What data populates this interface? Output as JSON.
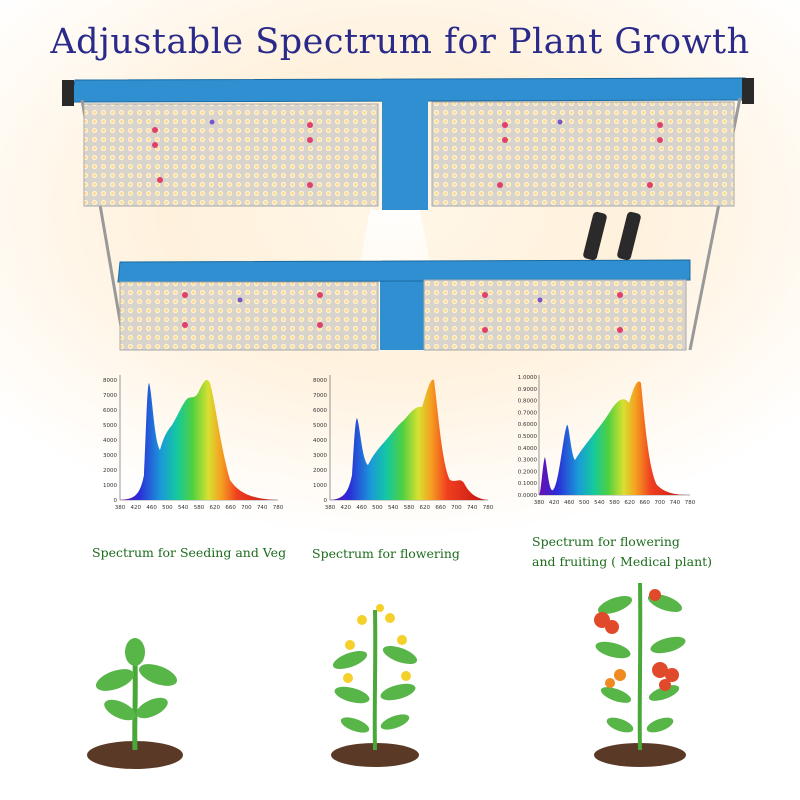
{
  "title": "Adjustable Spectrum for Plant Growth",
  "charts": [
    {
      "name": "seeding-veg",
      "caption": [
        "Spectrum for Seeding and Veg"
      ],
      "y_ticks": [
        "0",
        "1000",
        "2000",
        "3000",
        "4000",
        "5000",
        "6000",
        "7000",
        "8000"
      ],
      "x_ticks": [
        "380",
        "420",
        "460",
        "500",
        "540",
        "580",
        "620",
        "660",
        "700",
        "740",
        "780"
      ]
    },
    {
      "name": "flowering",
      "caption": [
        "Spectrum for flowering"
      ],
      "y_ticks": [
        "0",
        "1000",
        "2000",
        "3000",
        "4000",
        "5000",
        "6000",
        "7000",
        "8000"
      ],
      "x_ticks": [
        "380",
        "420",
        "460",
        "500",
        "540",
        "580",
        "620",
        "660",
        "700",
        "740",
        "780"
      ]
    },
    {
      "name": "fruiting",
      "caption": [
        "Spectrum for flowering",
        "and fruiting ( Medical plant)"
      ],
      "y_ticks": [
        "0.0000",
        "0.1000",
        "0.2000",
        "0.3000",
        "0.4000",
        "0.5000",
        "0.6000",
        "0.7000",
        "0.8000",
        "0.9000",
        "1.0000"
      ],
      "x_ticks": [
        "380",
        "420",
        "460",
        "500",
        "540",
        "580",
        "620",
        "660",
        "700",
        "740",
        "780"
      ]
    }
  ],
  "colors": {
    "title": "#2a2a8a",
    "caption": "#1d6b1d",
    "frame": "#2f8fd0"
  },
  "icons": [
    "led-grow-light-panel",
    "seedling-plant",
    "flowering-plant",
    "fruiting-tomato-plant"
  ]
}
